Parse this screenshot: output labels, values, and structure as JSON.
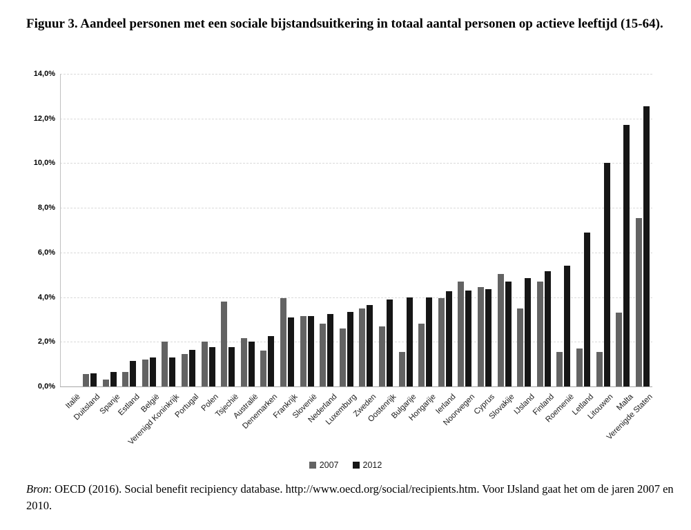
{
  "title": "Figuur 3. Aandeel personen met een sociale bijstandsuitkering in totaal aantal personen op actieve leeftijd (15-64).",
  "source": {
    "italic_prefix": "Bron",
    "rest": ": OECD (2016). Social benefit recipiency database. http://www.oecd.org/social/recipients.htm. Voor IJsland gaat het om de jaren 2007 en 2010."
  },
  "chart_data": {
    "type": "bar",
    "title": "Aandeel personen met een sociale bijstandsuitkering in totaal aantal personen op actieve leeftijd (15-64)",
    "xlabel": "",
    "ylabel": "",
    "ylim": [
      0,
      14
    ],
    "grid": "horizontal-dashed",
    "legend_position": "bottom-center",
    "yticks": [
      {
        "label": "0,0%",
        "value": 0
      },
      {
        "label": "2,0%",
        "value": 2
      },
      {
        "label": "4,0%",
        "value": 4
      },
      {
        "label": "6,0%",
        "value": 6
      },
      {
        "label": "8,0%",
        "value": 8
      },
      {
        "label": "10,0%",
        "value": 10
      },
      {
        "label": "12,0%",
        "value": 12
      },
      {
        "label": "14,0%",
        "value": 14
      }
    ],
    "categories": [
      "Italië",
      "Duitsland",
      "Spanje",
      "Estland",
      "België",
      "Verenigd Koninkrijk",
      "Portugal",
      "Polen",
      "Tsjechië",
      "Australië",
      "Denemarken",
      "Frankrijk",
      "Slovenië",
      "Nederland",
      "Luxemburg",
      "Zweden",
      "Oostenrijk",
      "Bulgarije",
      "Hongarije",
      "Ierland",
      "Noorwegen",
      "Cyprus",
      "Slovakije",
      "IJsland",
      "Finland",
      "Roemenië",
      "Letland",
      "Litouwen",
      "Malta",
      "Verenigde Staten"
    ],
    "series": [
      {
        "name": "2007",
        "color": "#636363",
        "values": [
          0,
          0.55,
          0.3,
          0.65,
          1.2,
          2.0,
          1.45,
          2.0,
          3.8,
          2.15,
          1.6,
          3.95,
          3.15,
          2.8,
          2.6,
          3.5,
          2.7,
          1.55,
          2.8,
          3.95,
          4.7,
          4.45,
          5.05,
          3.5,
          4.7,
          1.55,
          1.7,
          1.55,
          3.3,
          7.55
        ]
      },
      {
        "name": "2012",
        "color": "#161616",
        "values": [
          0,
          0.6,
          0.65,
          1.15,
          1.3,
          1.3,
          1.65,
          1.75,
          1.75,
          2.0,
          2.25,
          3.1,
          3.15,
          3.25,
          3.35,
          3.65,
          3.9,
          4.0,
          4.0,
          4.25,
          4.3,
          4.35,
          4.7,
          4.85,
          5.15,
          5.4,
          6.9,
          10.0,
          11.7,
          12.55
        ]
      }
    ]
  }
}
